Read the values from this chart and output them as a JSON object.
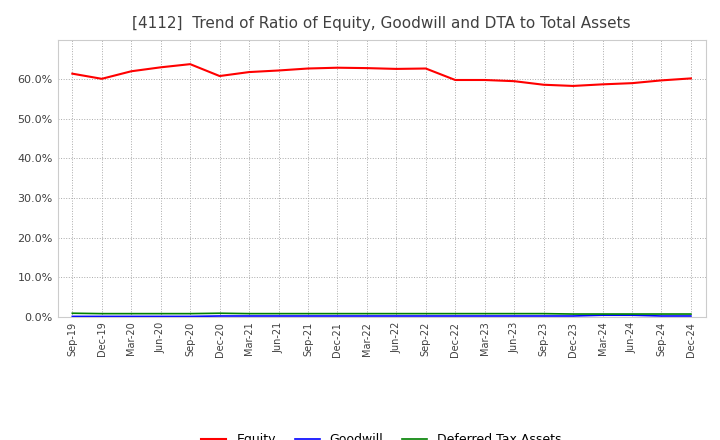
{
  "title": "[4112]  Trend of Ratio of Equity, Goodwill and DTA to Total Assets",
  "x_labels": [
    "Sep-19",
    "Dec-19",
    "Mar-20",
    "Jun-20",
    "Sep-20",
    "Dec-20",
    "Mar-21",
    "Jun-21",
    "Sep-21",
    "Dec-21",
    "Mar-22",
    "Jun-22",
    "Sep-22",
    "Dec-22",
    "Mar-23",
    "Jun-23",
    "Sep-23",
    "Dec-23",
    "Mar-24",
    "Jun-24",
    "Sep-24",
    "Dec-24"
  ],
  "equity": [
    0.614,
    0.601,
    0.62,
    0.63,
    0.638,
    0.608,
    0.618,
    0.622,
    0.627,
    0.629,
    0.628,
    0.626,
    0.627,
    0.598,
    0.598,
    0.595,
    0.586,
    0.583,
    0.587,
    0.59,
    0.597,
    0.602
  ],
  "goodwill": [
    0.001,
    0.001,
    0.001,
    0.001,
    0.001,
    0.002,
    0.002,
    0.002,
    0.002,
    0.002,
    0.002,
    0.002,
    0.002,
    0.002,
    0.002,
    0.002,
    0.002,
    0.002,
    0.004,
    0.004,
    0.002,
    0.002
  ],
  "dta": [
    0.009,
    0.008,
    0.008,
    0.008,
    0.008,
    0.009,
    0.008,
    0.008,
    0.008,
    0.008,
    0.008,
    0.008,
    0.008,
    0.008,
    0.008,
    0.008,
    0.008,
    0.007,
    0.007,
    0.007,
    0.007,
    0.007
  ],
  "equity_color": "#FF0000",
  "goodwill_color": "#0000FF",
  "dta_color": "#008000",
  "background_color": "#FFFFFF",
  "plot_bg_color": "#FFFFFF",
  "grid_color": "#AAAAAA",
  "ylim": [
    0.0,
    0.7
  ],
  "yticks": [
    0.0,
    0.1,
    0.2,
    0.3,
    0.4,
    0.5,
    0.6
  ],
  "title_color": "#404040",
  "title_fontsize": 11,
  "legend_labels": [
    "Equity",
    "Goodwill",
    "Deferred Tax Assets"
  ]
}
